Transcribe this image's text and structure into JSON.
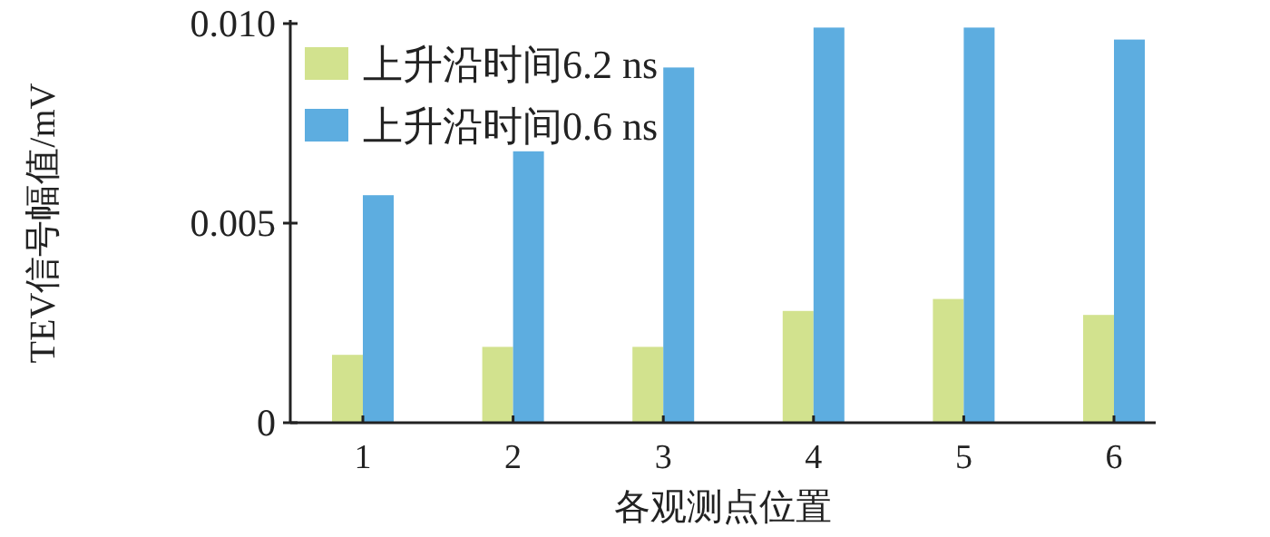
{
  "chart_data": {
    "type": "bar",
    "xlabel": "各观测点位置",
    "ylabel": "TEV信号幅值/mV",
    "categories": [
      "1",
      "2",
      "3",
      "4",
      "5",
      "6"
    ],
    "series": [
      {
        "name": "上升沿时间6.2 ns",
        "color": "#d2e28e",
        "values": [
          0.0017,
          0.0019,
          0.0019,
          0.0028,
          0.0031,
          0.0027
        ]
      },
      {
        "name": "上升沿时间0.6 ns",
        "color": "#5dade0",
        "values": [
          0.0057,
          0.0068,
          0.0089,
          0.0099,
          0.0099,
          0.0096
        ]
      }
    ],
    "ylim": [
      0,
      0.01
    ],
    "yticks": [
      {
        "value": 0,
        "label": "0"
      },
      {
        "value": 0.005,
        "label": "0.005"
      },
      {
        "value": 0.01,
        "label": "0.010"
      }
    ],
    "legend": "top left",
    "grid": false
  }
}
